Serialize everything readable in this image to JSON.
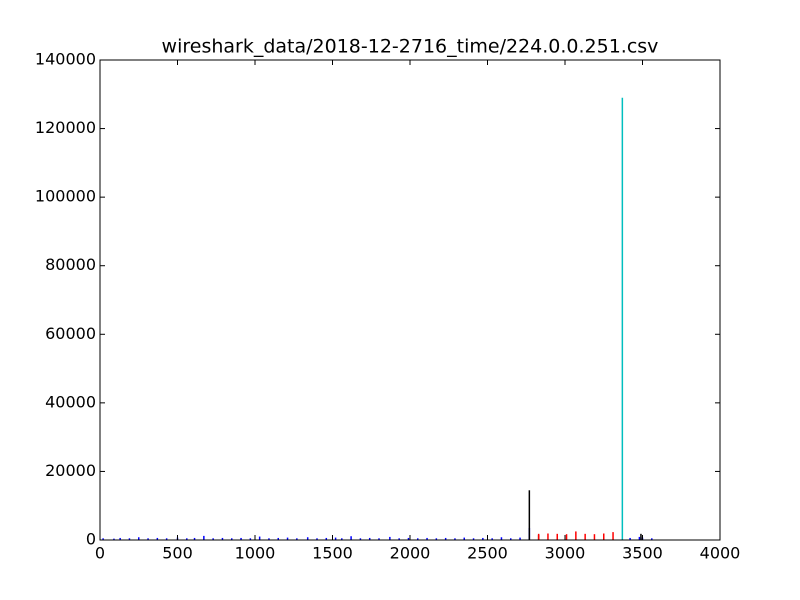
{
  "chart_data": {
    "type": "stem",
    "title": "wireshark_data/2018-12-2716_time/224.0.0.251.csv",
    "xlim": [
      0,
      4000
    ],
    "xticks": [
      0,
      500,
      1000,
      1500,
      2000,
      2500,
      3000,
      3500,
      4000
    ],
    "ylim": [
      0,
      140000
    ],
    "yticks": [
      0,
      20000,
      40000,
      60000,
      80000,
      100000,
      120000,
      140000
    ],
    "grid": false,
    "series": [
      {
        "color": "#0000ff",
        "x": [
          20,
          90,
          130,
          190,
          250,
          310,
          370,
          430,
          500,
          560,
          610,
          670,
          730,
          790,
          850,
          910,
          970,
          1030,
          1090,
          1150,
          1210,
          1270,
          1340,
          1400,
          1460,
          1520,
          1560,
          1620,
          1680,
          1740,
          1800,
          1870,
          1930,
          1990,
          2050,
          2110,
          2170,
          2230,
          2290,
          2350,
          2410,
          2470,
          2530,
          2590,
          2650,
          2710,
          2770,
          3420,
          3480,
          3500,
          3560
        ],
        "values": [
          500,
          400,
          600,
          500,
          800,
          500,
          600,
          500,
          700,
          500,
          600,
          1200,
          500,
          600,
          500,
          600,
          500,
          1000,
          500,
          600,
          700,
          500,
          800,
          500,
          600,
          700,
          500,
          1100,
          500,
          600,
          500,
          900,
          500,
          600,
          500,
          600,
          500,
          600,
          500,
          700,
          500,
          600,
          500,
          800,
          500,
          700,
          3500,
          600,
          900,
          700,
          500
        ]
      },
      {
        "color": "#000000",
        "x": [
          2770,
          2830,
          3490
        ],
        "values": [
          14500,
          1500,
          1800
        ]
      },
      {
        "color": "#ff0000",
        "x": [
          2830,
          2890,
          2950,
          3010,
          3070,
          3130,
          3190,
          3250,
          3310
        ],
        "values": [
          1800,
          1900,
          1800,
          1700,
          2500,
          1800,
          1700,
          1900,
          2300
        ]
      },
      {
        "color": "#00bfbf",
        "x": [
          3370
        ],
        "values": [
          129000
        ]
      }
    ]
  }
}
